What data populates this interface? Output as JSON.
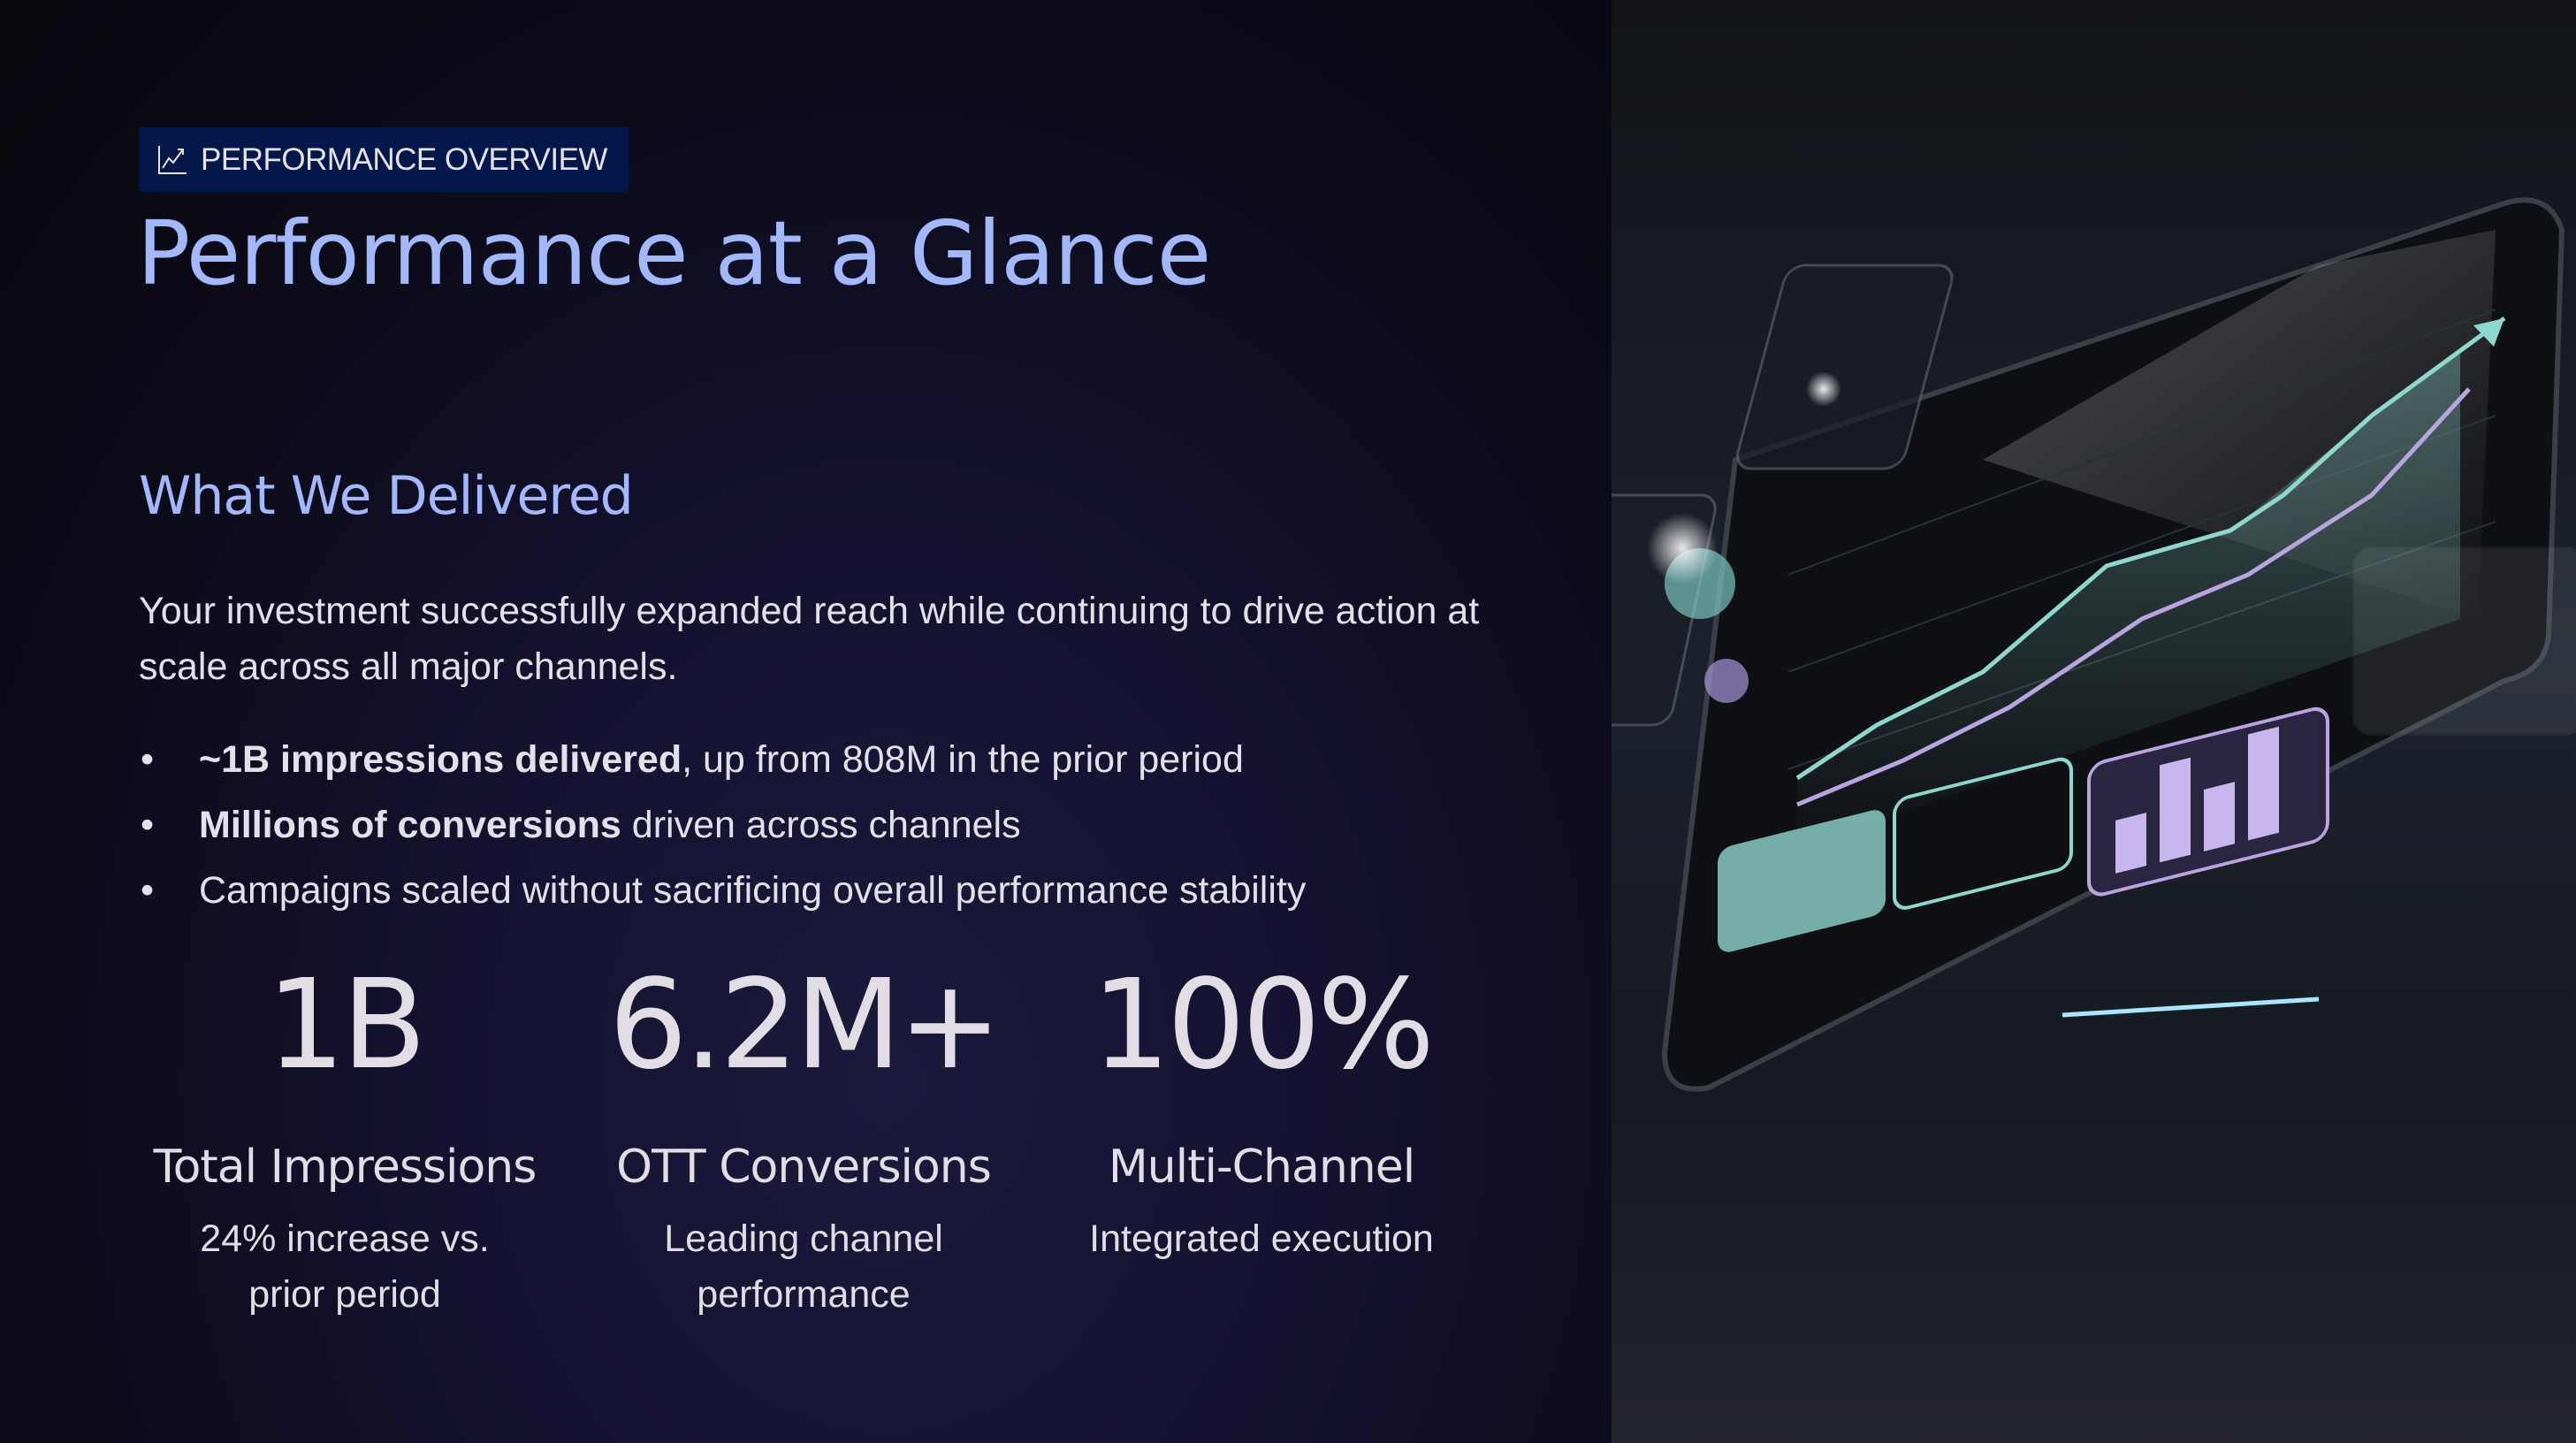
{
  "badge": {
    "icon": "trending-chart-icon",
    "label": "PERFORMANCE OVERVIEW"
  },
  "title": "Performance at a Glance",
  "section": {
    "heading": "What We Delivered",
    "lead": "Your investment successfully expanded reach while continuing to drive action at scale across all major channels.",
    "bullets": [
      {
        "bold": "~1B impressions delivered",
        "rest": ", up from 808M in the prior period"
      },
      {
        "bold": "Millions of conversions",
        "rest": " driven across channels"
      },
      {
        "bold": "",
        "rest": "Campaigns scaled without sacrificing overall performance stability"
      }
    ]
  },
  "stats": [
    {
      "value": "1B",
      "label": "Total Impressions",
      "desc": "24% increase vs. prior period"
    },
    {
      "value": "6.2M+",
      "label": "OTT Conversions",
      "desc": "Leading channel performance"
    },
    {
      "value": "100%",
      "label": "Multi-Channel",
      "desc": "Integrated execution"
    }
  ],
  "colors": {
    "accent": "#a3b8fb",
    "badge_bg": "#03174a",
    "text": "#e4e0ea",
    "teal": "#8fd6cc",
    "lavender": "#b9a4e0"
  },
  "hero_image": "analytics-dashboard-tablet-illustration"
}
